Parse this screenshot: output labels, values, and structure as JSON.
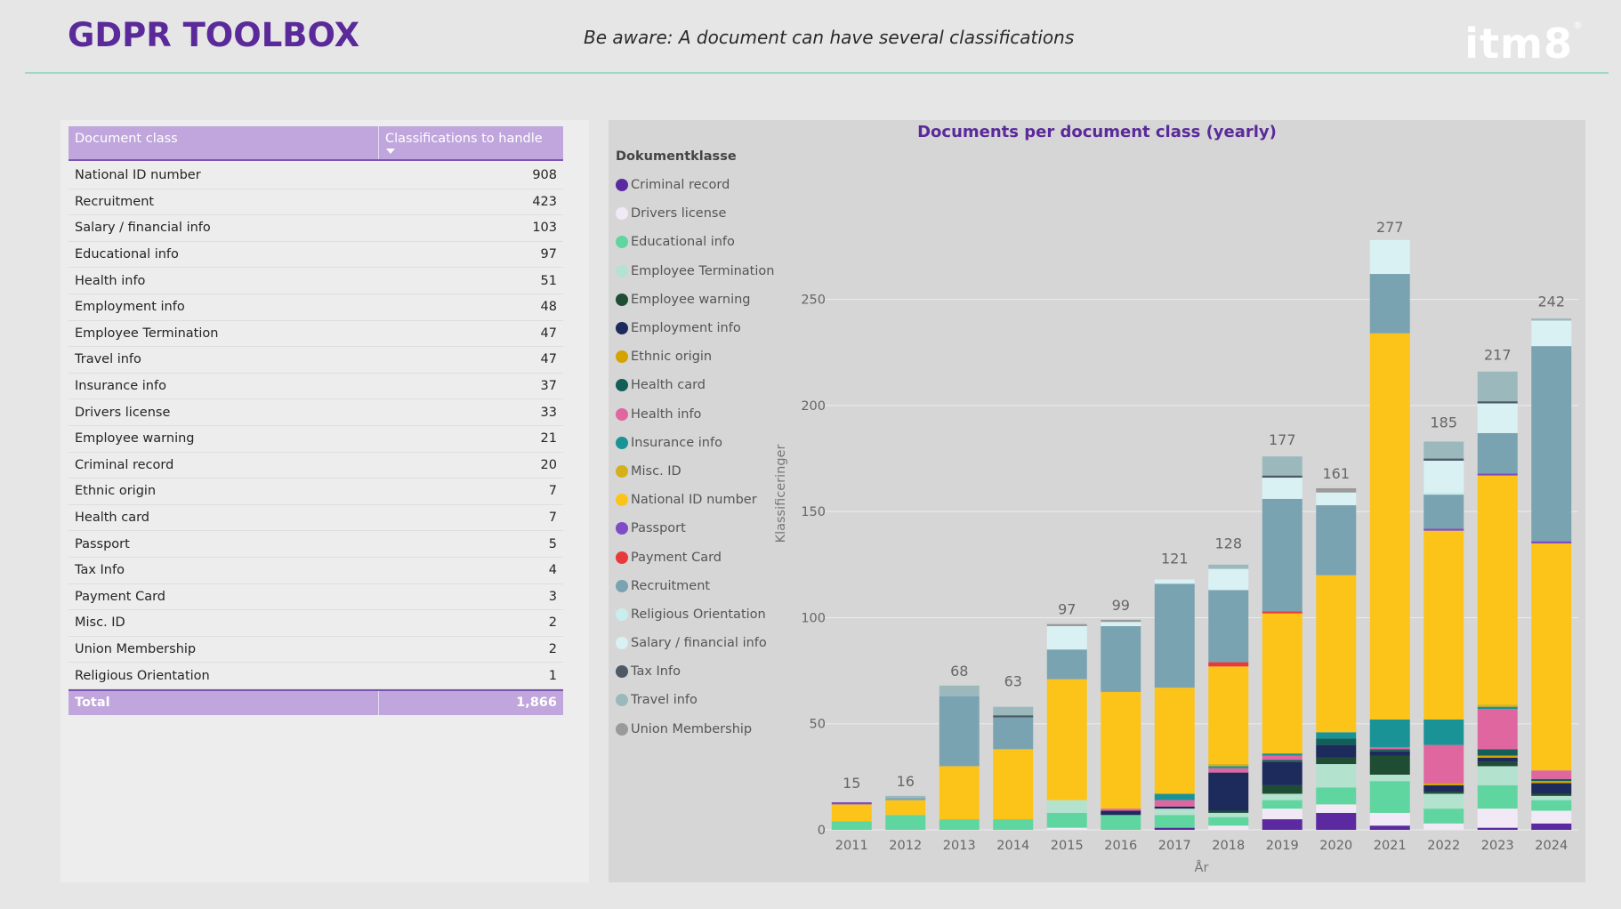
{
  "header": {
    "title": "GDPR TOOLBOX",
    "note": "Be aware: A document can have several classifications",
    "logo": "itm8",
    "logo_mark": "®"
  },
  "table": {
    "col_class": "Document class",
    "col_count": "Classifications to handle",
    "rows": [
      {
        "name": "National ID number",
        "value": "908"
      },
      {
        "name": "Recruitment",
        "value": "423"
      },
      {
        "name": "Salary / financial info",
        "value": "103"
      },
      {
        "name": "Educational info",
        "value": "97"
      },
      {
        "name": "Health info",
        "value": "51"
      },
      {
        "name": "Employment info",
        "value": "48"
      },
      {
        "name": "Employee Termination",
        "value": "47"
      },
      {
        "name": "Travel info",
        "value": "47"
      },
      {
        "name": "Insurance info",
        "value": "37"
      },
      {
        "name": "Drivers license",
        "value": "33"
      },
      {
        "name": "Employee warning",
        "value": "21"
      },
      {
        "name": "Criminal record",
        "value": "20"
      },
      {
        "name": "Ethnic origin",
        "value": "7"
      },
      {
        "name": "Health card",
        "value": "7"
      },
      {
        "name": "Passport",
        "value": "5"
      },
      {
        "name": "Tax Info",
        "value": "4"
      },
      {
        "name": "Payment Card",
        "value": "3"
      },
      {
        "name": "Misc. ID",
        "value": "2"
      },
      {
        "name": "Union Membership",
        "value": "2"
      },
      {
        "name": "Religious Orientation",
        "value": "1"
      }
    ],
    "total_label": "Total",
    "total_value": "1,866"
  },
  "legend_title": "Dokumentklasse",
  "chart_data": {
    "type": "bar",
    "stacked": true,
    "title": "Documents per document class (yearly)",
    "xlabel": "År",
    "ylabel": "Klassificeringer",
    "ylim": [
      0,
      280
    ],
    "yticks": [
      0,
      50,
      100,
      150,
      200,
      250
    ],
    "grid": true,
    "legend_position": "left",
    "categories": [
      "2011",
      "2012",
      "2013",
      "2014",
      "2015",
      "2016",
      "2017",
      "2018",
      "2019",
      "2020",
      "2021",
      "2022",
      "2023",
      "2024"
    ],
    "totals": [
      15,
      16,
      68,
      63,
      97,
      99,
      121,
      128,
      177,
      161,
      277,
      185,
      217,
      242
    ],
    "series": [
      {
        "name": "Criminal record",
        "color": "#5b2aa0",
        "values": [
          0,
          0,
          0,
          0,
          0,
          0,
          1,
          0,
          5,
          8,
          2,
          0,
          1,
          3
        ]
      },
      {
        "name": "Drivers license",
        "color": "#f1eaf6",
        "values": [
          0,
          0,
          0,
          0,
          1,
          0,
          0,
          2,
          5,
          4,
          6,
          3,
          9,
          6
        ]
      },
      {
        "name": "Educational info",
        "color": "#5fd6a0",
        "values": [
          4,
          7,
          5,
          5,
          7,
          7,
          6,
          4,
          4,
          8,
          15,
          7,
          11,
          5
        ]
      },
      {
        "name": "Employee Termination",
        "color": "#b3e2cf",
        "values": [
          0,
          0,
          0,
          0,
          6,
          0,
          3,
          2,
          3,
          11,
          3,
          7,
          9,
          2
        ]
      },
      {
        "name": "Employee warning",
        "color": "#1f4d34",
        "values": [
          0,
          0,
          0,
          0,
          0,
          0,
          0,
          1,
          4,
          3,
          9,
          1,
          2,
          1
        ]
      },
      {
        "name": "Employment info",
        "color": "#1c2a5c",
        "values": [
          0,
          0,
          0,
          0,
          0,
          2,
          1,
          18,
          11,
          6,
          2,
          3,
          2,
          5
        ]
      },
      {
        "name": "Ethnic origin",
        "color": "#d4a300",
        "values": [
          0,
          0,
          0,
          0,
          0,
          0,
          0,
          0,
          0,
          0,
          0,
          1,
          1,
          1
        ]
      },
      {
        "name": "Health card",
        "color": "#145e58",
        "values": [
          0,
          0,
          0,
          0,
          0,
          0,
          0,
          0,
          1,
          3,
          1,
          0,
          3,
          1
        ]
      },
      {
        "name": "Health info",
        "color": "#e066a0",
        "values": [
          0,
          0,
          0,
          0,
          0,
          1,
          3,
          2,
          2,
          0,
          1,
          18,
          19,
          4
        ]
      },
      {
        "name": "Insurance info",
        "color": "#1a9396",
        "values": [
          0,
          0,
          0,
          0,
          0,
          0,
          3,
          1,
          1,
          3,
          13,
          12,
          1,
          0
        ]
      },
      {
        "name": "Misc. ID",
        "color": "#d4b11a",
        "values": [
          0,
          0,
          0,
          0,
          0,
          0,
          0,
          1,
          0,
          0,
          0,
          0,
          1,
          0
        ]
      },
      {
        "name": "National ID number",
        "color": "#fcc419",
        "values": [
          8,
          7,
          25,
          33,
          57,
          55,
          50,
          46,
          66,
          74,
          182,
          89,
          108,
          107
        ]
      },
      {
        "name": "Passport",
        "color": "#7e4cc4",
        "values": [
          1,
          0,
          0,
          0,
          0,
          0,
          0,
          0,
          0,
          0,
          0,
          1,
          1,
          1
        ]
      },
      {
        "name": "Payment Card",
        "color": "#e83a3a",
        "values": [
          0,
          0,
          0,
          0,
          0,
          0,
          0,
          2,
          1,
          0,
          0,
          0,
          0,
          0
        ]
      },
      {
        "name": "Recruitment",
        "color": "#7aa3b2",
        "values": [
          0,
          1,
          33,
          15,
          14,
          31,
          49,
          34,
          53,
          33,
          28,
          16,
          19,
          92
        ]
      },
      {
        "name": "Religious Orientation",
        "color": "#c8eeee",
        "values": [
          0,
          0,
          0,
          0,
          0,
          0,
          0,
          0,
          0,
          0,
          0,
          1,
          0,
          0
        ]
      },
      {
        "name": "Salary / financial info",
        "color": "#d9f1f3",
        "values": [
          0,
          0,
          0,
          0,
          11,
          2,
          2,
          10,
          10,
          6,
          16,
          15,
          14,
          12
        ]
      },
      {
        "name": "Tax Info",
        "color": "#4d5a66",
        "values": [
          0,
          0,
          0,
          1,
          0,
          0,
          0,
          0,
          1,
          0,
          0,
          1,
          1,
          0
        ]
      },
      {
        "name": "Travel info",
        "color": "#9bb9bd",
        "values": [
          0,
          1,
          5,
          4,
          0,
          0,
          0,
          2,
          9,
          0,
          0,
          8,
          14,
          1
        ]
      },
      {
        "name": "Union Membership",
        "color": "#9a9a9a",
        "values": [
          0,
          0,
          0,
          0,
          1,
          1,
          0,
          0,
          0,
          2,
          0,
          0,
          0,
          0
        ]
      }
    ]
  }
}
